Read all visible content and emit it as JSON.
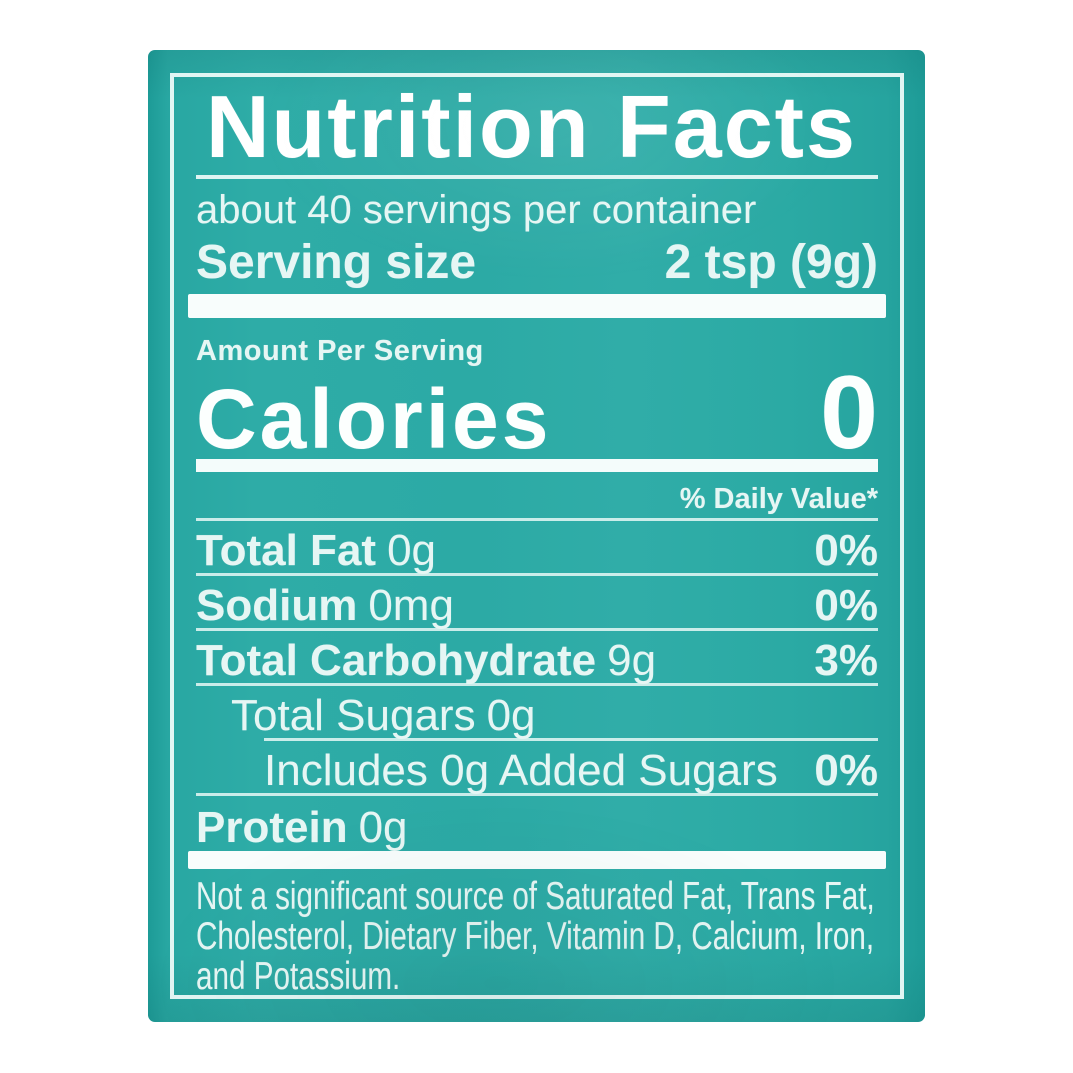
{
  "photo": {
    "background_color": "#ffffff"
  },
  "bag": {
    "color": "#2caba6"
  },
  "label": {
    "title": "Nutrition Facts",
    "servings_per_container": "about 40 servings per container",
    "serving_size": {
      "label": "Serving size",
      "value": "2 tsp (9g)"
    },
    "amount_per_serving": "Amount Per Serving",
    "calories": {
      "label": "Calories",
      "value": "0"
    },
    "daily_value_header": "% Daily Value*",
    "nutrients": [
      {
        "name": "Total Fat",
        "amount": "0g",
        "daily_value": "0%"
      },
      {
        "name": "Sodium",
        "amount": "0mg",
        "daily_value": "0%"
      },
      {
        "name": "Total Carbohydrate",
        "amount": "9g",
        "daily_value": "3%"
      },
      {
        "name": "Total Sugars",
        "amount": "0g",
        "daily_value": ""
      },
      {
        "name": "Includes 0g Added Sugars",
        "amount": "",
        "daily_value": "0%"
      },
      {
        "name": "Protein",
        "amount": "0g",
        "daily_value": ""
      }
    ],
    "footnote_lines": [
      "Not a significant source of Saturated Fat, Trans Fat,",
      "Cholesterol, Dietary Fiber, Vitamin D, Calcium, Iron,",
      "and Potassium."
    ],
    "colors": {
      "label_teal": "#2caba6",
      "text_tint": "#e6f6f4",
      "bright_white": "#ffffff"
    }
  }
}
